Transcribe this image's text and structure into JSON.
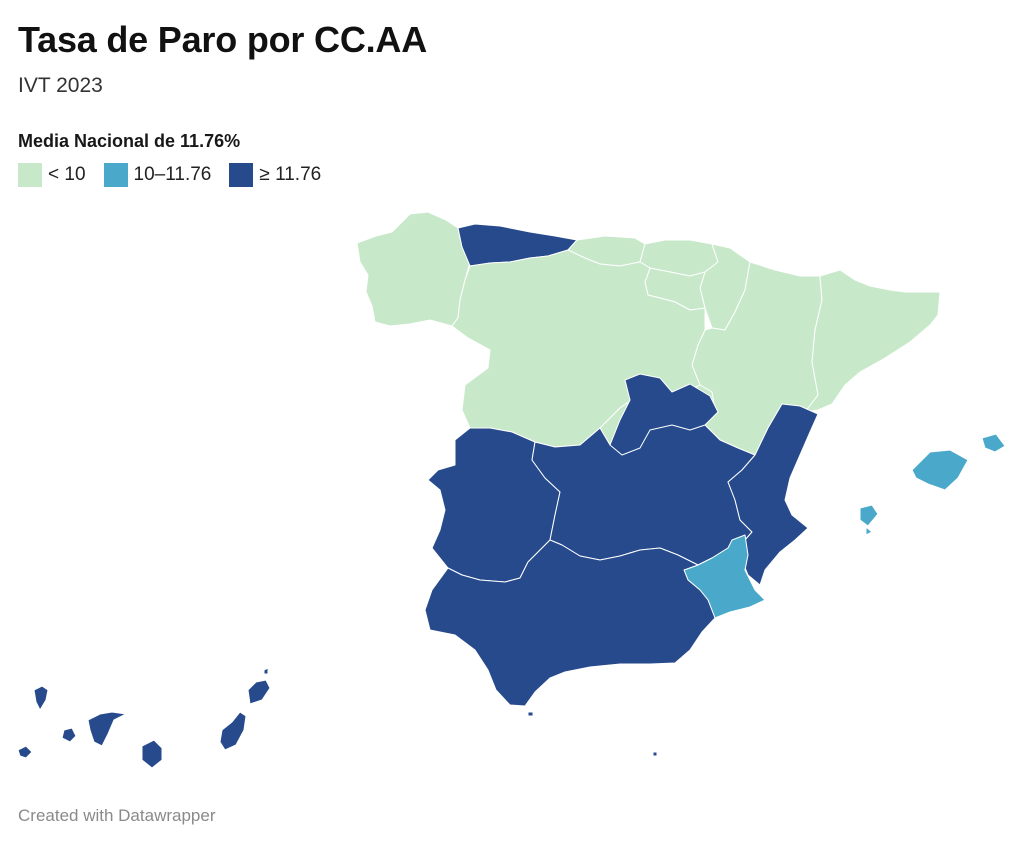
{
  "header": {
    "title": "Tasa de Paro por CC.AA",
    "subtitle": "IVT 2023"
  },
  "legend": {
    "title": "Media Nacional de 11.76%",
    "items": [
      {
        "label": "< 10",
        "color": "#c7e8c9"
      },
      {
        "label": "10–11.76",
        "color": "#4aa9cb"
      },
      {
        "label": "≥ 11.76",
        "color": "#264a8c"
      }
    ]
  },
  "map": {
    "regions": [
      {
        "name": "Galicia",
        "category": "low"
      },
      {
        "name": "Asturias",
        "category": "high"
      },
      {
        "name": "Cantabria",
        "category": "low"
      },
      {
        "name": "País Vasco",
        "category": "low"
      },
      {
        "name": "Navarra",
        "category": "low"
      },
      {
        "name": "La Rioja",
        "category": "low"
      },
      {
        "name": "Aragón",
        "category": "low"
      },
      {
        "name": "Cataluña",
        "category": "low"
      },
      {
        "name": "Castilla y León",
        "category": "low"
      },
      {
        "name": "Madrid",
        "category": "low"
      },
      {
        "name": "Extremadura",
        "category": "high"
      },
      {
        "name": "Castilla-La Mancha",
        "category": "high"
      },
      {
        "name": "Comunidad Valenciana",
        "category": "high"
      },
      {
        "name": "Región de Murcia",
        "category": "mid"
      },
      {
        "name": "Andalucía",
        "category": "high"
      },
      {
        "name": "Islas Baleares",
        "category": "mid"
      },
      {
        "name": "Canarias",
        "category": "high"
      },
      {
        "name": "Ceuta",
        "category": "high"
      },
      {
        "name": "Melilla",
        "category": "high"
      }
    ]
  },
  "footer": {
    "credit": "Created with Datawrapper"
  }
}
